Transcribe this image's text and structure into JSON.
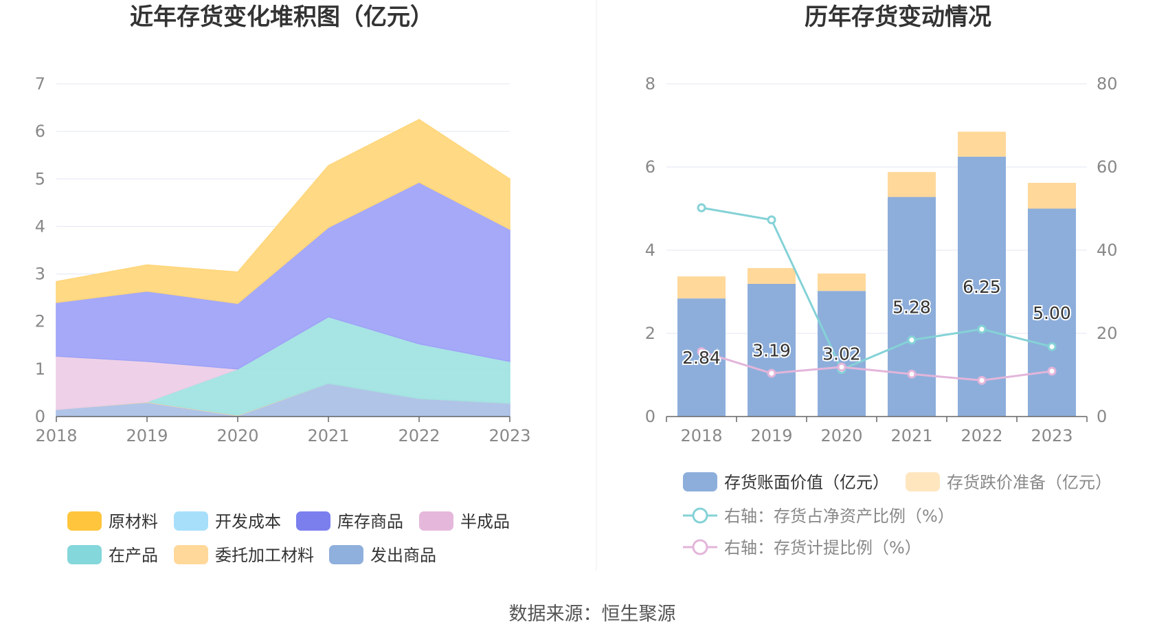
{
  "footer": "数据来源：恒生聚源",
  "chart_data": [
    {
      "type": "area",
      "stacked": true,
      "title": "近年存货变化堆积图（亿元）",
      "categories": [
        "2018",
        "2019",
        "2020",
        "2021",
        "2022",
        "2023"
      ],
      "ylim": [
        0,
        7
      ],
      "yticks": [
        0,
        1,
        2,
        3,
        4,
        5,
        6,
        7
      ],
      "grid": true,
      "legend_position": "bottom",
      "legend": [
        {
          "name": "原材料",
          "color": "#FFC53D"
        },
        {
          "name": "开发成本",
          "color": "#A7DFFA"
        },
        {
          "name": "库存商品",
          "color": "#7B7FEE"
        },
        {
          "name": "半成品",
          "color": "#E5B8DB"
        },
        {
          "name": "在产品",
          "color": "#84D7DA"
        },
        {
          "name": "委托加工材料",
          "color": "#FFD89A"
        },
        {
          "name": "发出商品",
          "color": "#8FAFDC"
        }
      ],
      "series": [
        {
          "name": "发出商品",
          "color": "#A9BFE6",
          "values": [
            0.15,
            0.3,
            0.02,
            0.7,
            0.38,
            0.28
          ]
        },
        {
          "name": "委托加工材料",
          "color": "#FFD89A",
          "values": [
            0,
            0.01,
            0.01,
            0,
            0,
            0
          ]
        },
        {
          "name": "在产品",
          "color": "#9FE2E2",
          "values": [
            0,
            0,
            0.97,
            1.4,
            1.15,
            0.88
          ]
        },
        {
          "name": "开发成本",
          "color": "#A7DFFA",
          "values": [
            0,
            0,
            0,
            0,
            0,
            0
          ]
        },
        {
          "name": "半成品",
          "color": "#EDCDE6",
          "values": [
            1.12,
            0.85,
            0,
            0,
            0,
            0
          ]
        },
        {
          "name": "库存商品",
          "color": "#9DA2F7",
          "values": [
            1.13,
            1.48,
            1.38,
            1.88,
            3.4,
            2.78
          ]
        },
        {
          "name": "原材料",
          "color": "#FFD67A",
          "values": [
            0.44,
            0.55,
            0.66,
            1.3,
            1.32,
            1.06
          ]
        }
      ]
    },
    {
      "type": "bar",
      "stacked": true,
      "title": "历年存货变动情况",
      "categories": [
        "2018",
        "2019",
        "2020",
        "2021",
        "2022",
        "2023"
      ],
      "ylim": [
        0,
        8
      ],
      "yticks": [
        0,
        2,
        4,
        6,
        8
      ],
      "y2lim": [
        0,
        80
      ],
      "y2ticks": [
        0,
        20,
        40,
        60,
        80
      ],
      "grid": true,
      "legend_position": "bottom",
      "series": [
        {
          "name": "存货账面价值（亿元）",
          "kind": "bar",
          "axis": "left",
          "color": "#8DAEDB",
          "values": [
            2.84,
            3.19,
            3.02,
            5.28,
            6.25,
            5.0
          ],
          "labels": [
            "2.84",
            "3.19",
            "3.02",
            "5.28",
            "6.25",
            "5.00"
          ]
        },
        {
          "name": "存货跌价准备（亿元）",
          "kind": "bar",
          "axis": "left",
          "color": "#FFD89A",
          "values": [
            0.53,
            0.38,
            0.42,
            0.6,
            0.6,
            0.62
          ]
        },
        {
          "name": "右轴：存货占净资产比例（%）",
          "kind": "line",
          "axis": "right",
          "color": "#84D2D6",
          "values": [
            50.2,
            47.3,
            11.3,
            18.4,
            21.0,
            16.8
          ]
        },
        {
          "name": "右轴：存货计提比例（%）",
          "kind": "line",
          "axis": "right",
          "color": "#E3B5DA",
          "values": [
            15.6,
            10.4,
            11.9,
            10.2,
            8.7,
            10.9
          ]
        }
      ]
    }
  ]
}
